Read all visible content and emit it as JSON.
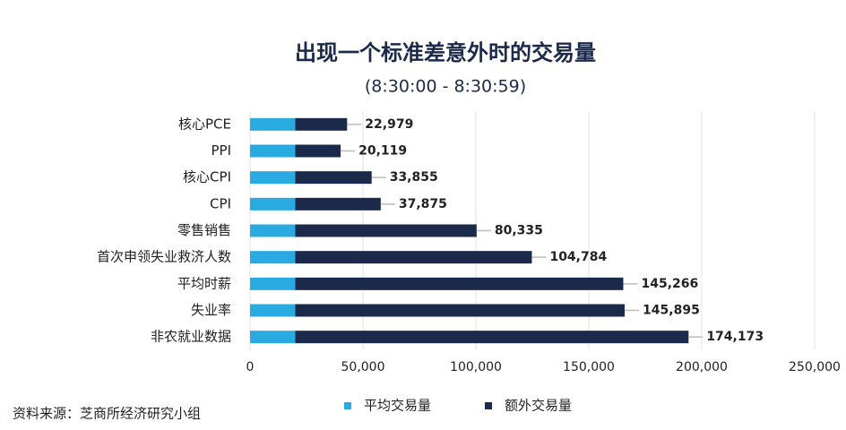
{
  "chart_data": {
    "type": "stacked-barh",
    "title": "出现一个标准差意外时的交易量",
    "subtitle": "(8:30:00 - 8:30:59)",
    "source": "资料来源：芝商所经济研究小组",
    "categories": [
      "核心PCE",
      "PPI",
      "核心CPI",
      "CPI",
      "零售销售",
      "首次申领失业救济人数",
      "平均时薪",
      "失业率",
      "非农就业数据"
    ],
    "series": [
      {
        "name": "平均交易量",
        "color": "#29abe2",
        "values": [
          20000,
          20000,
          20000,
          20000,
          20000,
          20000,
          20000,
          20000,
          20000
        ]
      },
      {
        "name": "额外交易量",
        "color": "#1b2a4a",
        "values": [
          22979,
          20119,
          33855,
          37875,
          80335,
          104784,
          145266,
          145895,
          174173
        ],
        "value_labels": [
          "22,979",
          "20,119",
          "33,855",
          "37,875",
          "80,335",
          "104,784",
          "145,266",
          "145,895",
          "174,173"
        ]
      }
    ],
    "xlim": [
      0,
      250000
    ],
    "xticks": [
      0,
      {
        "value": 50000,
        "label": "50,000"
      },
      {
        "value": 100000,
        "label": "100,000"
      },
      {
        "value": 150000,
        "label": "150,000"
      },
      {
        "value": 200000,
        "label": "200,000"
      },
      {
        "value": 250000,
        "label": "250,000"
      }
    ],
    "grid": true,
    "legend": "bottom"
  }
}
